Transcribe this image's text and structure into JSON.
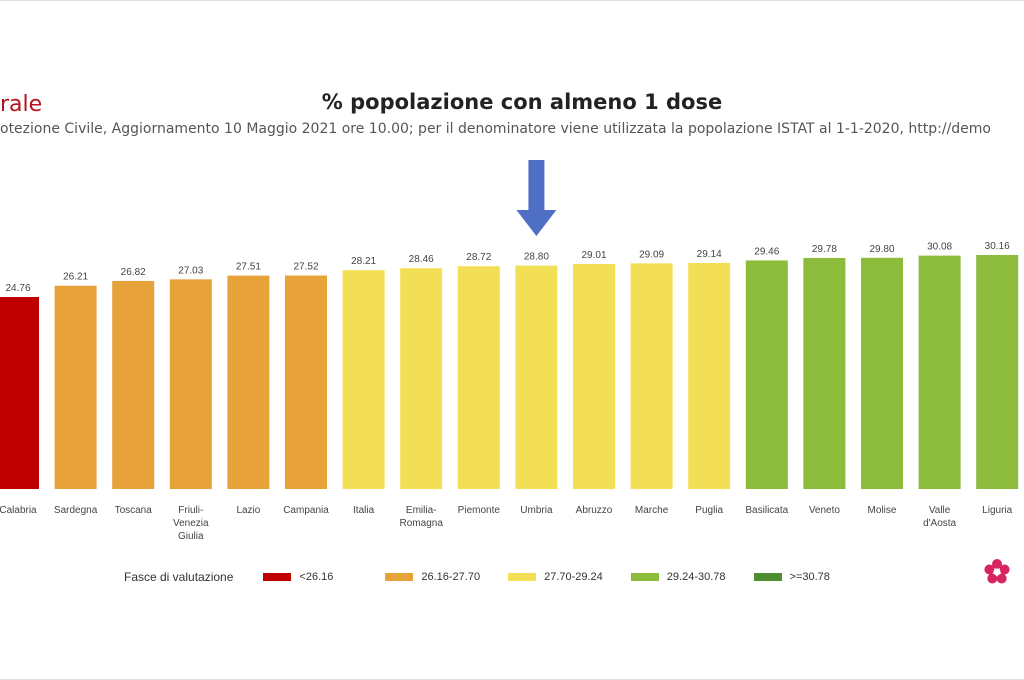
{
  "header": {
    "corner_title": "rale",
    "subtitle": "otezione Civile, Aggiornamento 10 Maggio 2021 ore 10.00; per il denominatore viene utilizzata la popolazione ISTAT al 1-1-2020, http://demo"
  },
  "legend": {
    "title": "Fasce di valutazione",
    "items": [
      {
        "label": "<26.16",
        "color": "#c00000"
      },
      {
        "label": "26.16-27.70",
        "color": "#e8a23a"
      },
      {
        "label": "27.70-29.24",
        "color": "#f3df55"
      },
      {
        "label": "29.24-30.78",
        "color": "#8dbb3c"
      },
      {
        "label": ">=30.78",
        "color": "#4f8f2f"
      }
    ]
  },
  "arrow": {
    "target": "Umbria",
    "color": "#4f6fc5"
  },
  "chart_data": {
    "type": "bar",
    "title": "% popolazione con almeno 1 dose",
    "categories": [
      "Calabria",
      "Sardegna",
      "Toscana",
      "Friuli-\nVenezia\nGiulia",
      "Lazio",
      "Campania",
      "Italia",
      "Emilia-\nRomagna",
      "Piemonte",
      "Umbria",
      "Abruzzo",
      "Marche",
      "Puglia",
      "Basilicata",
      "Veneto",
      "Molise",
      "Valle\nd'Aosta",
      "Liguria"
    ],
    "values": [
      24.76,
      26.21,
      26.82,
      27.03,
      27.51,
      27.52,
      28.21,
      28.46,
      28.72,
      28.8,
      29.01,
      29.09,
      29.14,
      29.46,
      29.78,
      29.8,
      30.08,
      30.16
    ],
    "value_labels": [
      "24.76",
      "26.21",
      "26.82",
      "27.03",
      "27.51",
      "27.52",
      "28.21",
      "28.46",
      "28.72",
      "28.80",
      "29.01",
      "29.09",
      "29.14",
      "29.46",
      "29.78",
      "29.80",
      "30.08",
      "30.16"
    ],
    "band_colors": [
      "#c00000",
      "#e8a23a",
      "#e8a23a",
      "#e8a23a",
      "#e8a23a",
      "#e8a23a",
      "#f3df55",
      "#f3df55",
      "#f3df55",
      "#f3df55",
      "#f3df55",
      "#f3df55",
      "#f3df55",
      "#8dbb3c",
      "#8dbb3c",
      "#8dbb3c",
      "#8dbb3c",
      "#8dbb3c"
    ],
    "xlabel": "",
    "ylabel": "",
    "ylim": [
      0,
      30.16
    ],
    "grid": false,
    "legend_position": "bottom"
  }
}
